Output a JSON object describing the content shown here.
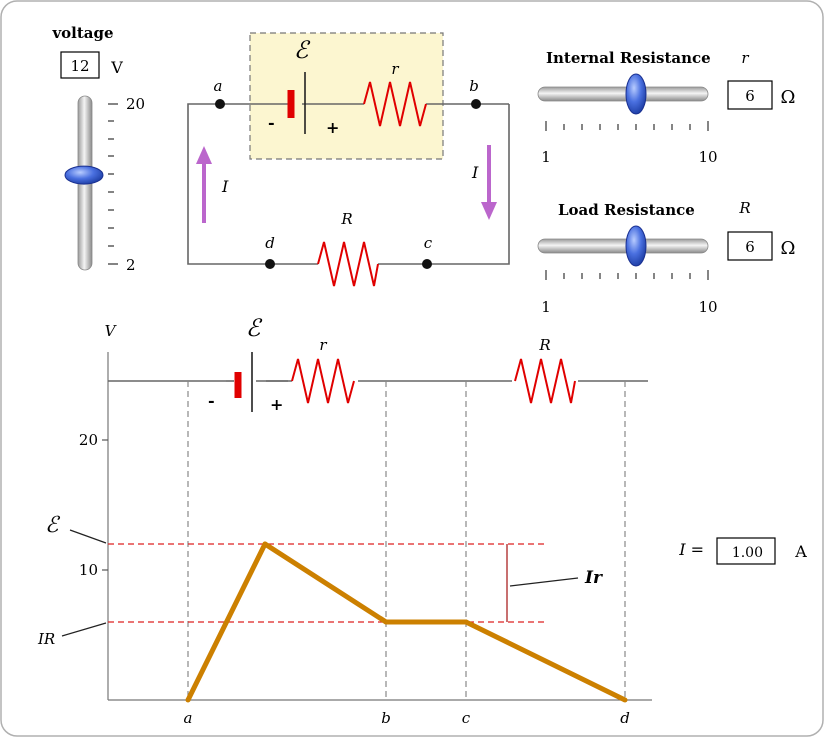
{
  "voltage": {
    "label": "voltage",
    "value": "12",
    "unit": "V",
    "max_label": "20",
    "min_label": "2",
    "min": 2,
    "max": 20,
    "current": 12
  },
  "internal_resistance": {
    "label": "Internal Resistance",
    "symbol": "r",
    "value": "6",
    "unit": "Ω",
    "min_label": "1",
    "max_label": "10",
    "min": 1,
    "max": 10,
    "current": 6
  },
  "load_resistance": {
    "label": "Load Resistance",
    "symbol": "R",
    "value": "6",
    "unit": "Ω",
    "min_label": "1",
    "max_label": "10",
    "min": 1,
    "max": 10,
    "current": 6
  },
  "circuit": {
    "emf_symbol": "ℰ",
    "battery_minus": "-",
    "battery_plus": "+",
    "internal_resistor_label": "r",
    "load_resistor_label": "R",
    "node_a": "a",
    "node_b": "b",
    "node_c": "c",
    "node_d": "d",
    "current_left": "I",
    "current_right": "I"
  },
  "current_readout": {
    "label": "I =",
    "value": "1.00",
    "unit": "A"
  },
  "colors": {
    "wire": "#666666",
    "resistor": "#dd0000",
    "arrow": "#bb66cc",
    "plot_line": "#cc8000",
    "reference": "#dd2222",
    "emf_box": "#fcf6d0"
  },
  "chart_data": {
    "type": "line",
    "y_label": "V",
    "y_ticks": [
      "10",
      "20"
    ],
    "x_labels": [
      "a",
      "b",
      "c",
      "d"
    ],
    "ylim": [
      0,
      26
    ],
    "x": [
      "a",
      "battery",
      "b",
      "c",
      "d"
    ],
    "values": [
      0,
      12,
      6,
      6,
      0
    ],
    "emf_symbol": "ℰ",
    "battery_minus": "-",
    "battery_plus": "+",
    "internal_resistor_label": "r",
    "load_resistor_label": "R",
    "annotations": {
      "emf": "ℰ",
      "ir_drop": "Ir",
      "load_drop": "IR"
    }
  }
}
